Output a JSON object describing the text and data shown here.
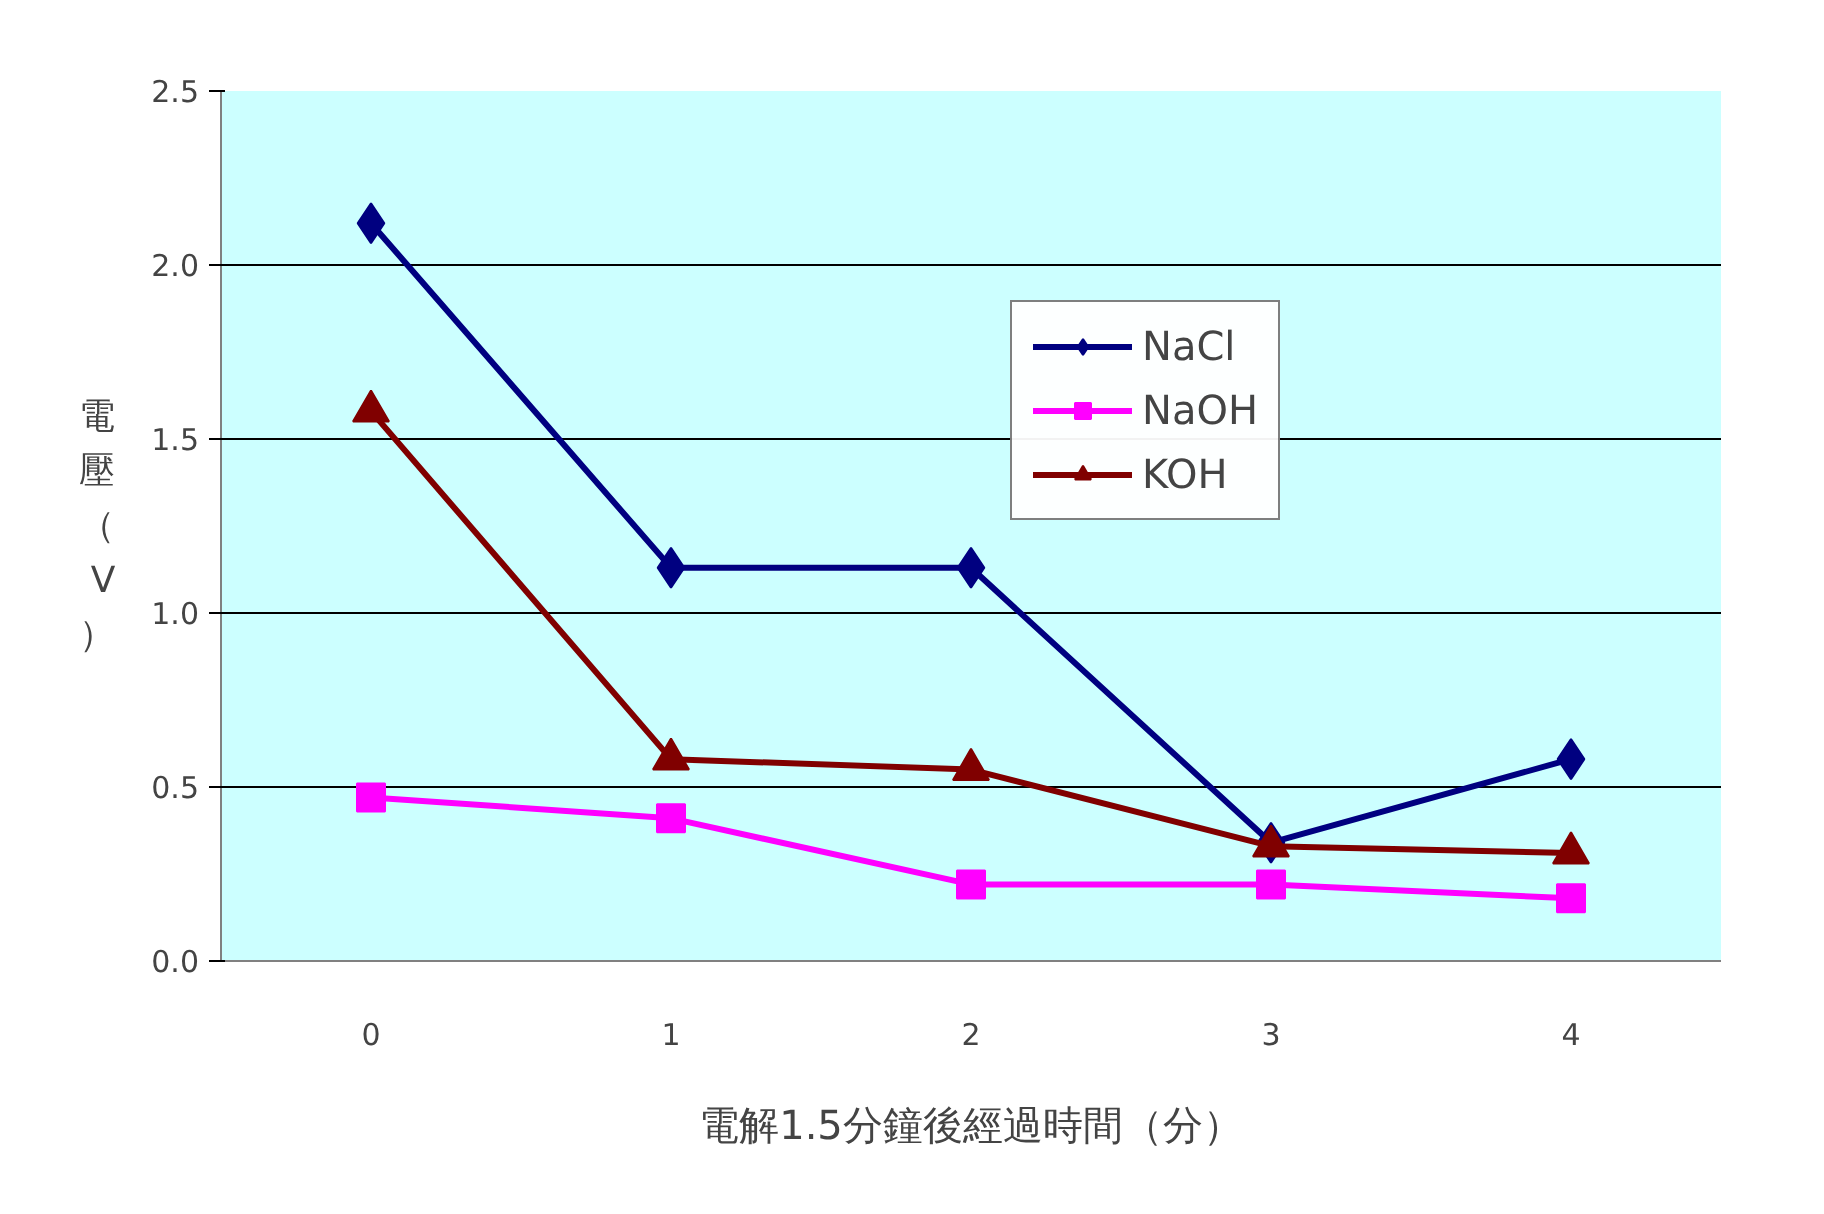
{
  "chart_data": {
    "type": "line",
    "xlabel": "電解1.5分鐘後經過時間（分）",
    "ylabel": "電壓（V）",
    "categories": [
      "0",
      "1",
      "2",
      "3",
      "4"
    ],
    "series": [
      {
        "name": "NaCl",
        "color": "#000080",
        "marker": "diamond",
        "values": [
          2.12,
          1.13,
          1.13,
          0.34,
          0.58
        ]
      },
      {
        "name": "NaOH",
        "color": "#ff00ff",
        "marker": "square",
        "values": [
          0.47,
          0.41,
          0.22,
          0.22,
          0.18
        ]
      },
      {
        "name": "KOH",
        "color": "#800000",
        "marker": "triangle",
        "values": [
          1.58,
          0.58,
          0.55,
          0.33,
          0.31
        ]
      }
    ],
    "ylim": [
      0,
      2.5
    ],
    "yticks": [
      {
        "value": 0,
        "label": "0.0"
      },
      {
        "value": 0.5,
        "label": "0.5"
      },
      {
        "value": 1,
        "label": "1.0"
      },
      {
        "value": 1.5,
        "label": "1.5"
      },
      {
        "value": 2,
        "label": "2.0"
      },
      {
        "value": 2.5,
        "label": "2.5"
      }
    ],
    "grid": "y",
    "legend": "top right"
  }
}
